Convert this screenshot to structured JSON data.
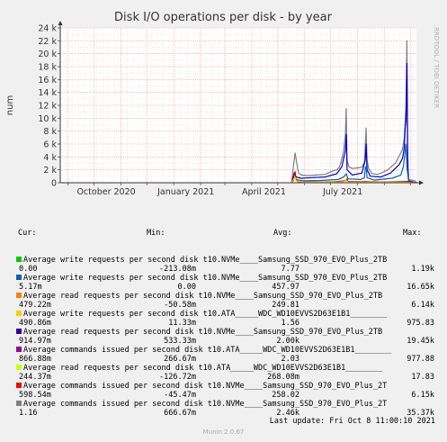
{
  "chart_data": {
    "type": "line",
    "title": "Disk I/O operations per disk - by year",
    "ylabel": "num",
    "xlabel": "",
    "ylim": [
      0,
      24000
    ],
    "y_ticks": [
      {
        "value": 0,
        "label": "0"
      },
      {
        "value": 2000,
        "label": "2 k"
      },
      {
        "value": 4000,
        "label": "4 k"
      },
      {
        "value": 6000,
        "label": "6 k"
      },
      {
        "value": 8000,
        "label": "8 k"
      },
      {
        "value": 10000,
        "label": "10 k"
      },
      {
        "value": 12000,
        "label": "12 k"
      },
      {
        "value": 14000,
        "label": "14 k"
      },
      {
        "value": 16000,
        "label": "16 k"
      },
      {
        "value": 18000,
        "label": "18 k"
      },
      {
        "value": 20000,
        "label": "20 k"
      },
      {
        "value": 22000,
        "label": "22 k"
      },
      {
        "value": 24000,
        "label": "24 k"
      }
    ],
    "x_ticks": [
      "October 2020",
      "January 2021",
      "April 2021",
      "July 2021"
    ],
    "watermark": "RRDTOOL / TOBI OETIKER",
    "series": [
      {
        "name": "Average commands issued per second disk t10.NVMe____Samsung_SSD_970_EVO_Plus_2TB",
        "color": "#7f7f7f",
        "points": [
          [
            "2021-05-17",
            0
          ],
          [
            "2021-05-19",
            2500
          ],
          [
            "2021-05-21",
            4600
          ],
          [
            "2021-05-23",
            3000
          ],
          [
            "2021-05-25",
            1500
          ],
          [
            "2021-05-28",
            1200
          ],
          [
            "2021-06-05",
            1100
          ],
          [
            "2021-06-15",
            1200
          ],
          [
            "2021-06-25",
            1300
          ],
          [
            "2021-07-03",
            1800
          ],
          [
            "2021-07-08",
            2000
          ],
          [
            "2021-07-11",
            2400
          ],
          [
            "2021-07-13",
            3200
          ],
          [
            "2021-07-16",
            5000
          ],
          [
            "2021-07-18",
            7500
          ],
          [
            "2021-07-19",
            11500
          ],
          [
            "2021-07-20",
            3500
          ],
          [
            "2021-07-22",
            2500
          ],
          [
            "2021-07-26",
            2200
          ],
          [
            "2021-08-01",
            2300
          ],
          [
            "2021-08-06",
            2400
          ],
          [
            "2021-08-09",
            3200
          ],
          [
            "2021-08-11",
            8500
          ],
          [
            "2021-08-12",
            3500
          ],
          [
            "2021-08-14",
            2100
          ],
          [
            "2021-08-18",
            1400
          ],
          [
            "2021-08-24",
            1300
          ],
          [
            "2021-08-30",
            1600
          ],
          [
            "2021-09-05",
            2000
          ],
          [
            "2021-09-10",
            2600
          ],
          [
            "2021-09-14",
            3100
          ],
          [
            "2021-09-18",
            4100
          ],
          [
            "2021-09-22",
            5200
          ],
          [
            "2021-09-24",
            7000
          ],
          [
            "2021-09-26",
            12000
          ],
          [
            "2021-09-27",
            22000
          ],
          [
            "2021-09-28",
            4000
          ],
          [
            "2021-09-29",
            500
          ],
          [
            "2021-10-03",
            400
          ],
          [
            "2021-10-06",
            300
          ],
          [
            "2021-10-08",
            0
          ]
        ]
      },
      {
        "name": "Average read requests per second disk t10.NVMe____Samsung_SSD_970_EVO_Plus_2TB",
        "color": "#0000cc",
        "points": [
          [
            "2021-05-17",
            0
          ],
          [
            "2021-05-20",
            1500
          ],
          [
            "2021-05-22",
            900
          ],
          [
            "2021-05-28",
            700
          ],
          [
            "2021-06-10",
            800
          ],
          [
            "2021-06-25",
            900
          ],
          [
            "2021-07-08",
            1400
          ],
          [
            "2021-07-14",
            2500
          ],
          [
            "2021-07-18",
            5000
          ],
          [
            "2021-07-19",
            7500
          ],
          [
            "2021-07-20",
            2000
          ],
          [
            "2021-07-26",
            1200
          ],
          [
            "2021-08-06",
            1500
          ],
          [
            "2021-08-10",
            3500
          ],
          [
            "2021-08-11",
            6000
          ],
          [
            "2021-08-12",
            2000
          ],
          [
            "2021-08-16",
            1000
          ],
          [
            "2021-08-28",
            900
          ],
          [
            "2021-09-08",
            1500
          ],
          [
            "2021-09-18",
            2800
          ],
          [
            "2021-09-22",
            3800
          ],
          [
            "2021-09-24",
            5500
          ],
          [
            "2021-09-25",
            8500
          ],
          [
            "2021-09-26",
            9500
          ],
          [
            "2021-09-27",
            18500
          ],
          [
            "2021-09-28",
            2500
          ],
          [
            "2021-09-29",
            300
          ],
          [
            "2021-10-08",
            0
          ]
        ]
      },
      {
        "name": "Average write requests per second disk t10.NVMe____Samsung_SSD_970_EVO_Plus_2TB",
        "color": "#0066b3",
        "points": [
          [
            "2021-05-17",
            0
          ],
          [
            "2021-05-20",
            900
          ],
          [
            "2021-05-22",
            500
          ],
          [
            "2021-05-30",
            300
          ],
          [
            "2021-06-20",
            350
          ],
          [
            "2021-07-10",
            500
          ],
          [
            "2021-07-16",
            900
          ],
          [
            "2021-07-19",
            1400
          ],
          [
            "2021-07-21",
            600
          ],
          [
            "2021-08-05",
            500
          ],
          [
            "2021-08-09",
            800
          ],
          [
            "2021-08-10",
            2400
          ],
          [
            "2021-08-11",
            2500
          ],
          [
            "2021-08-12",
            800
          ],
          [
            "2021-08-20",
            400
          ],
          [
            "2021-09-10",
            700
          ],
          [
            "2021-09-20",
            1200
          ],
          [
            "2021-09-23",
            2500
          ],
          [
            "2021-09-26",
            6000
          ],
          [
            "2021-09-27",
            2500
          ],
          [
            "2021-09-29",
            200
          ],
          [
            "2021-10-08",
            0
          ]
        ]
      },
      {
        "name": "Average commands issued per second disk t10.ATA_____WDC_WD10EVVS2D63E1B1",
        "color": "#cc0000",
        "points": [
          [
            "2021-05-17",
            0
          ],
          [
            "2021-05-19",
            300
          ],
          [
            "2021-05-20",
            1500
          ],
          [
            "2021-05-21",
            1700
          ],
          [
            "2021-05-22",
            500
          ],
          [
            "2021-05-24",
            200
          ],
          [
            "2021-06-01",
            150
          ],
          [
            "2021-06-20",
            120
          ],
          [
            "2021-07-05",
            150
          ],
          [
            "2021-07-19",
            300
          ],
          [
            "2021-07-20",
            600
          ],
          [
            "2021-07-21",
            200
          ],
          [
            "2021-08-05",
            150
          ],
          [
            "2021-08-11",
            200
          ],
          [
            "2021-08-12",
            150
          ],
          [
            "2021-09-01",
            120
          ],
          [
            "2021-09-27",
            200
          ],
          [
            "2021-10-08",
            0
          ]
        ]
      },
      {
        "name": "Average write requests per second disk t10.ATA_____WDC_WD10EVVS2D63E1B1",
        "color": "#ffcc00",
        "points": [
          [
            "2021-05-17",
            0
          ],
          [
            "2021-05-20",
            700
          ],
          [
            "2021-05-21",
            900
          ],
          [
            "2021-05-22",
            300
          ],
          [
            "2021-06-01",
            100
          ],
          [
            "2021-07-15",
            120
          ],
          [
            "2021-07-20",
            300
          ],
          [
            "2021-07-21",
            100
          ],
          [
            "2021-09-20",
            100
          ],
          [
            "2021-10-08",
            0
          ]
        ]
      }
    ]
  },
  "legend": {
    "header": {
      "cur": "Cur:",
      "min": "Min:",
      "avg": "Avg:",
      "max": "Max:"
    },
    "rows": [
      {
        "color": "#00cc00",
        "label": "Average write requests per second disk t10.NVMe____Samsung_SSD_970_EVO_Plus_2TB",
        "cur": "0.00",
        "min": "-213.08m",
        "avg": "7.77",
        "max": "1.19k"
      },
      {
        "color": "#0066b3",
        "label": "Average write requests per second disk t10.NVMe____Samsung_SSD_970_EVO_Plus_2TB",
        "cur": "5.17m",
        "min": "0.00",
        "avg": "457.97",
        "max": "16.65k"
      },
      {
        "color": "#ff8000",
        "label": "Average read requests per second disk t10.NVMe____Samsung_SSD_970_EVO_Plus_2TB",
        "cur": "479.22m",
        "min": "-50.58m",
        "avg": "249.81",
        "max": "6.14k"
      },
      {
        "color": "#ffcc00",
        "label": "Average write requests per second disk t10.ATA_____WDC_WD10EVVS2D63E1B1________",
        "cur": "490.86m",
        "min": "11.33m",
        "avg": "1.56",
        "max": "975.83"
      },
      {
        "color": "#330099",
        "label": "Average read requests per second disk t10.NVMe____Samsung_SSD_970_EVO_Plus_2TB",
        "cur": "914.97m",
        "min": "533.33m",
        "avg": "2.00k",
        "max": "19.45k"
      },
      {
        "color": "#990099",
        "label": "Average commands issued per second disk t10.ATA_____WDC_WD10EVVS2D63E1B1________",
        "cur": "866.88m",
        "min": "266.67m",
        "avg": "2.03",
        "max": "977.88"
      },
      {
        "color": "#ccff00",
        "label": "Average read requests per second disk t10.ATA_____WDC_WD10EVVS2D63E1B1________",
        "cur": "244.37m",
        "min": "-126.72m",
        "avg": "268.08m",
        "max": "17.83"
      },
      {
        "color": "#ff0000",
        "label": "Average commands issued per second disk t10.NVMe____Samsung_SSD_970_EVO_Plus_2T",
        "cur": "598.54m",
        "min": "-45.47m",
        "avg": "258.02",
        "max": "6.15k"
      },
      {
        "color": "#808080",
        "label": "Average commands issued per second disk t10.NVMe____Samsung_SSD_970_EVO_Plus_2T",
        "cur": "1.16",
        "min": "666.67m",
        "avg": "2.46k",
        "max": "35.37k"
      }
    ]
  },
  "footer": {
    "last_update": "Last update: Fri Oct  8 11:00:10 2021",
    "munin": "Munin 2.0.67"
  }
}
